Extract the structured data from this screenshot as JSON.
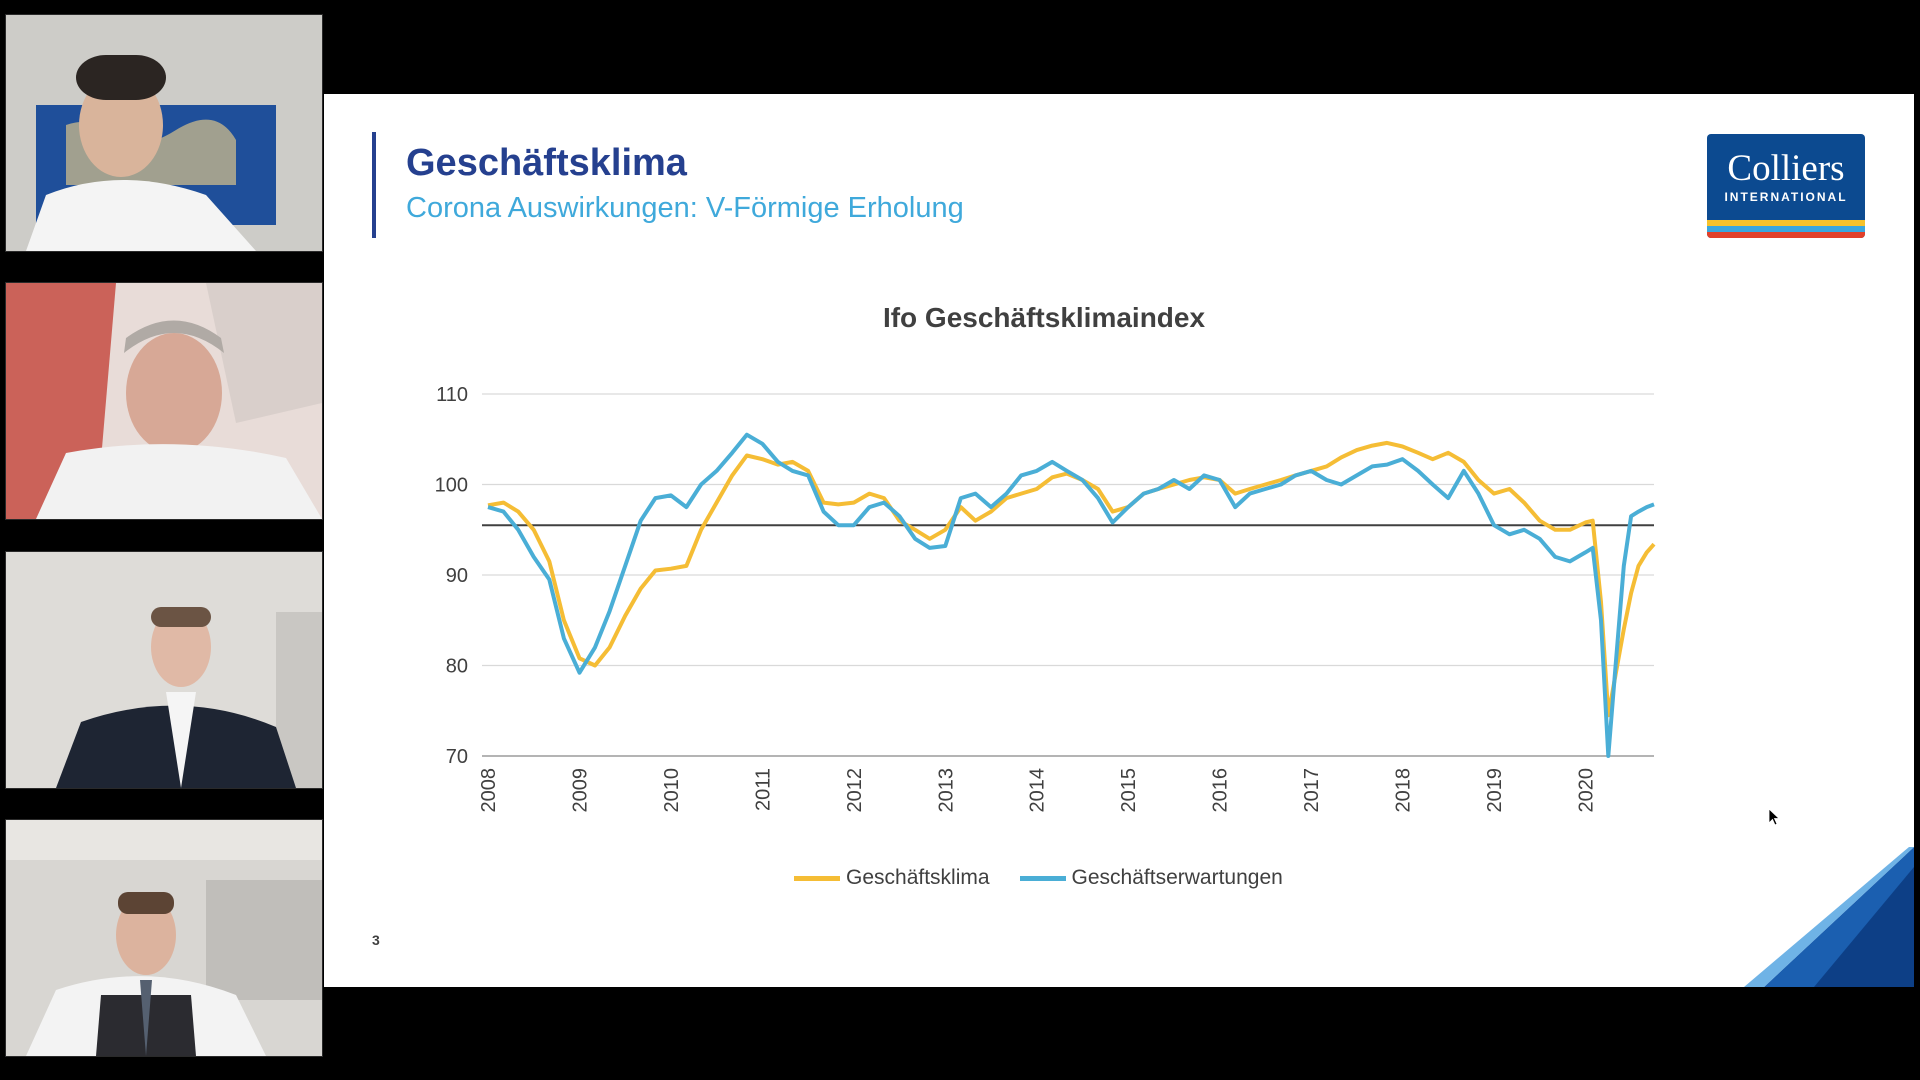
{
  "participants": [
    {
      "name": "participant-1",
      "bg": "#c9c8c4"
    },
    {
      "name": "participant-2",
      "bg": "#d9c8c4"
    },
    {
      "name": "participant-3",
      "bg": "#dcdad6"
    },
    {
      "name": "participant-4",
      "bg": "#d6d4d0"
    }
  ],
  "slide": {
    "title": "Geschäftsklima",
    "subtitle": "Corona Auswirkungen: V-Förmige Erholung",
    "page_number": "3",
    "logo": {
      "name": "Colliers",
      "sub": "INTERNATIONAL"
    }
  },
  "colors": {
    "title": "#25408f",
    "subtitle": "#3fa9db",
    "klima": "#f5bd35",
    "erwartungen": "#4aaed6",
    "reference_line": "#404040"
  },
  "chart_data": {
    "type": "line",
    "title": "Ifo Geschäftsklimaindex",
    "ylim": [
      70,
      110
    ],
    "yticks": [
      70,
      80,
      90,
      100,
      110
    ],
    "xlim": [
      2008,
      2020.75
    ],
    "xticks": [
      "2008",
      "2009",
      "2010",
      "2011",
      "2012",
      "2013",
      "2014",
      "2015",
      "2016",
      "2017",
      "2018",
      "2019",
      "2020"
    ],
    "reference_line": 95.5,
    "grid": true,
    "legend_position": "bottom",
    "series": [
      {
        "name": "Geschäftsklima",
        "color": "#f5bd35",
        "points": [
          [
            2008.0,
            97.7
          ],
          [
            2008.17,
            98.0
          ],
          [
            2008.33,
            97.0
          ],
          [
            2008.5,
            95.0
          ],
          [
            2008.67,
            91.5
          ],
          [
            2008.83,
            85.0
          ],
          [
            2009.0,
            80.8
          ],
          [
            2009.17,
            80.0
          ],
          [
            2009.33,
            82.0
          ],
          [
            2009.5,
            85.5
          ],
          [
            2009.67,
            88.5
          ],
          [
            2009.83,
            90.5
          ],
          [
            2010.0,
            90.7
          ],
          [
            2010.17,
            91.0
          ],
          [
            2010.33,
            95.0
          ],
          [
            2010.5,
            98.0
          ],
          [
            2010.67,
            101.0
          ],
          [
            2010.83,
            103.2
          ],
          [
            2011.0,
            102.8
          ],
          [
            2011.17,
            102.2
          ],
          [
            2011.33,
            102.5
          ],
          [
            2011.5,
            101.5
          ],
          [
            2011.67,
            98.0
          ],
          [
            2011.83,
            97.8
          ],
          [
            2012.0,
            98.0
          ],
          [
            2012.17,
            99.0
          ],
          [
            2012.33,
            98.5
          ],
          [
            2012.5,
            96.0
          ],
          [
            2012.67,
            95.0
          ],
          [
            2012.83,
            94.0
          ],
          [
            2013.0,
            95.0
          ],
          [
            2013.17,
            97.5
          ],
          [
            2013.33,
            96.0
          ],
          [
            2013.5,
            97.0
          ],
          [
            2013.67,
            98.5
          ],
          [
            2013.83,
            99.0
          ],
          [
            2014.0,
            99.5
          ],
          [
            2014.17,
            100.8
          ],
          [
            2014.33,
            101.2
          ],
          [
            2014.5,
            100.5
          ],
          [
            2014.67,
            99.5
          ],
          [
            2014.83,
            97.0
          ],
          [
            2015.0,
            97.5
          ],
          [
            2015.17,
            99.0
          ],
          [
            2015.33,
            99.5
          ],
          [
            2015.5,
            100.0
          ],
          [
            2015.67,
            100.5
          ],
          [
            2015.83,
            100.8
          ],
          [
            2016.0,
            100.5
          ],
          [
            2016.17,
            99.0
          ],
          [
            2016.33,
            99.5
          ],
          [
            2016.5,
            100.0
          ],
          [
            2016.67,
            100.5
          ],
          [
            2016.83,
            101.0
          ],
          [
            2017.0,
            101.5
          ],
          [
            2017.17,
            102.0
          ],
          [
            2017.33,
            103.0
          ],
          [
            2017.5,
            103.8
          ],
          [
            2017.67,
            104.3
          ],
          [
            2017.83,
            104.6
          ],
          [
            2018.0,
            104.2
          ],
          [
            2018.17,
            103.5
          ],
          [
            2018.33,
            102.8
          ],
          [
            2018.5,
            103.5
          ],
          [
            2018.67,
            102.5
          ],
          [
            2018.83,
            100.5
          ],
          [
            2019.0,
            99.0
          ],
          [
            2019.17,
            99.5
          ],
          [
            2019.33,
            98.0
          ],
          [
            2019.5,
            96.0
          ],
          [
            2019.67,
            95.0
          ],
          [
            2019.83,
            95.0
          ],
          [
            2020.0,
            95.8
          ],
          [
            2020.08,
            96.0
          ],
          [
            2020.17,
            87.0
          ],
          [
            2020.25,
            74.5
          ],
          [
            2020.33,
            79.0
          ],
          [
            2020.42,
            84.0
          ],
          [
            2020.5,
            88.0
          ],
          [
            2020.58,
            91.0
          ],
          [
            2020.67,
            92.5
          ],
          [
            2020.75,
            93.4
          ]
        ]
      },
      {
        "name": "Geschäftserwartungen",
        "color": "#4aaed6",
        "points": [
          [
            2008.0,
            97.5
          ],
          [
            2008.17,
            97.0
          ],
          [
            2008.33,
            95.0
          ],
          [
            2008.5,
            92.0
          ],
          [
            2008.67,
            89.5
          ],
          [
            2008.83,
            83.0
          ],
          [
            2009.0,
            79.2
          ],
          [
            2009.17,
            82.0
          ],
          [
            2009.33,
            86.0
          ],
          [
            2009.5,
            91.0
          ],
          [
            2009.67,
            96.0
          ],
          [
            2009.83,
            98.5
          ],
          [
            2010.0,
            98.8
          ],
          [
            2010.17,
            97.5
          ],
          [
            2010.33,
            100.0
          ],
          [
            2010.5,
            101.5
          ],
          [
            2010.67,
            103.5
          ],
          [
            2010.83,
            105.5
          ],
          [
            2011.0,
            104.5
          ],
          [
            2011.17,
            102.5
          ],
          [
            2011.33,
            101.5
          ],
          [
            2011.5,
            101.0
          ],
          [
            2011.67,
            97.0
          ],
          [
            2011.83,
            95.5
          ],
          [
            2012.0,
            95.5
          ],
          [
            2012.17,
            97.5
          ],
          [
            2012.33,
            98.0
          ],
          [
            2012.5,
            96.5
          ],
          [
            2012.67,
            94.0
          ],
          [
            2012.83,
            93.0
          ],
          [
            2013.0,
            93.2
          ],
          [
            2013.17,
            98.5
          ],
          [
            2013.33,
            99.0
          ],
          [
            2013.5,
            97.5
          ],
          [
            2013.67,
            99.0
          ],
          [
            2013.83,
            101.0
          ],
          [
            2014.0,
            101.5
          ],
          [
            2014.17,
            102.5
          ],
          [
            2014.33,
            101.5
          ],
          [
            2014.5,
            100.5
          ],
          [
            2014.67,
            98.5
          ],
          [
            2014.83,
            95.8
          ],
          [
            2015.0,
            97.5
          ],
          [
            2015.17,
            99.0
          ],
          [
            2015.33,
            99.5
          ],
          [
            2015.5,
            100.5
          ],
          [
            2015.67,
            99.5
          ],
          [
            2015.83,
            101.0
          ],
          [
            2016.0,
            100.5
          ],
          [
            2016.17,
            97.5
          ],
          [
            2016.33,
            99.0
          ],
          [
            2016.5,
            99.5
          ],
          [
            2016.67,
            100.0
          ],
          [
            2016.83,
            101.0
          ],
          [
            2017.0,
            101.5
          ],
          [
            2017.17,
            100.5
          ],
          [
            2017.33,
            100.0
          ],
          [
            2017.5,
            101.0
          ],
          [
            2017.67,
            102.0
          ],
          [
            2017.83,
            102.2
          ],
          [
            2018.0,
            102.8
          ],
          [
            2018.17,
            101.5
          ],
          [
            2018.33,
            100.0
          ],
          [
            2018.5,
            98.5
          ],
          [
            2018.67,
            101.5
          ],
          [
            2018.83,
            99.0
          ],
          [
            2019.0,
            95.5
          ],
          [
            2019.17,
            94.5
          ],
          [
            2019.33,
            95.0
          ],
          [
            2019.5,
            94.0
          ],
          [
            2019.67,
            92.0
          ],
          [
            2019.83,
            91.5
          ],
          [
            2020.0,
            92.5
          ],
          [
            2020.08,
            93.0
          ],
          [
            2020.17,
            85.0
          ],
          [
            2020.25,
            70.0
          ],
          [
            2020.33,
            80.0
          ],
          [
            2020.42,
            91.0
          ],
          [
            2020.5,
            96.5
          ],
          [
            2020.58,
            97.0
          ],
          [
            2020.67,
            97.5
          ],
          [
            2020.75,
            97.8
          ]
        ]
      }
    ]
  }
}
